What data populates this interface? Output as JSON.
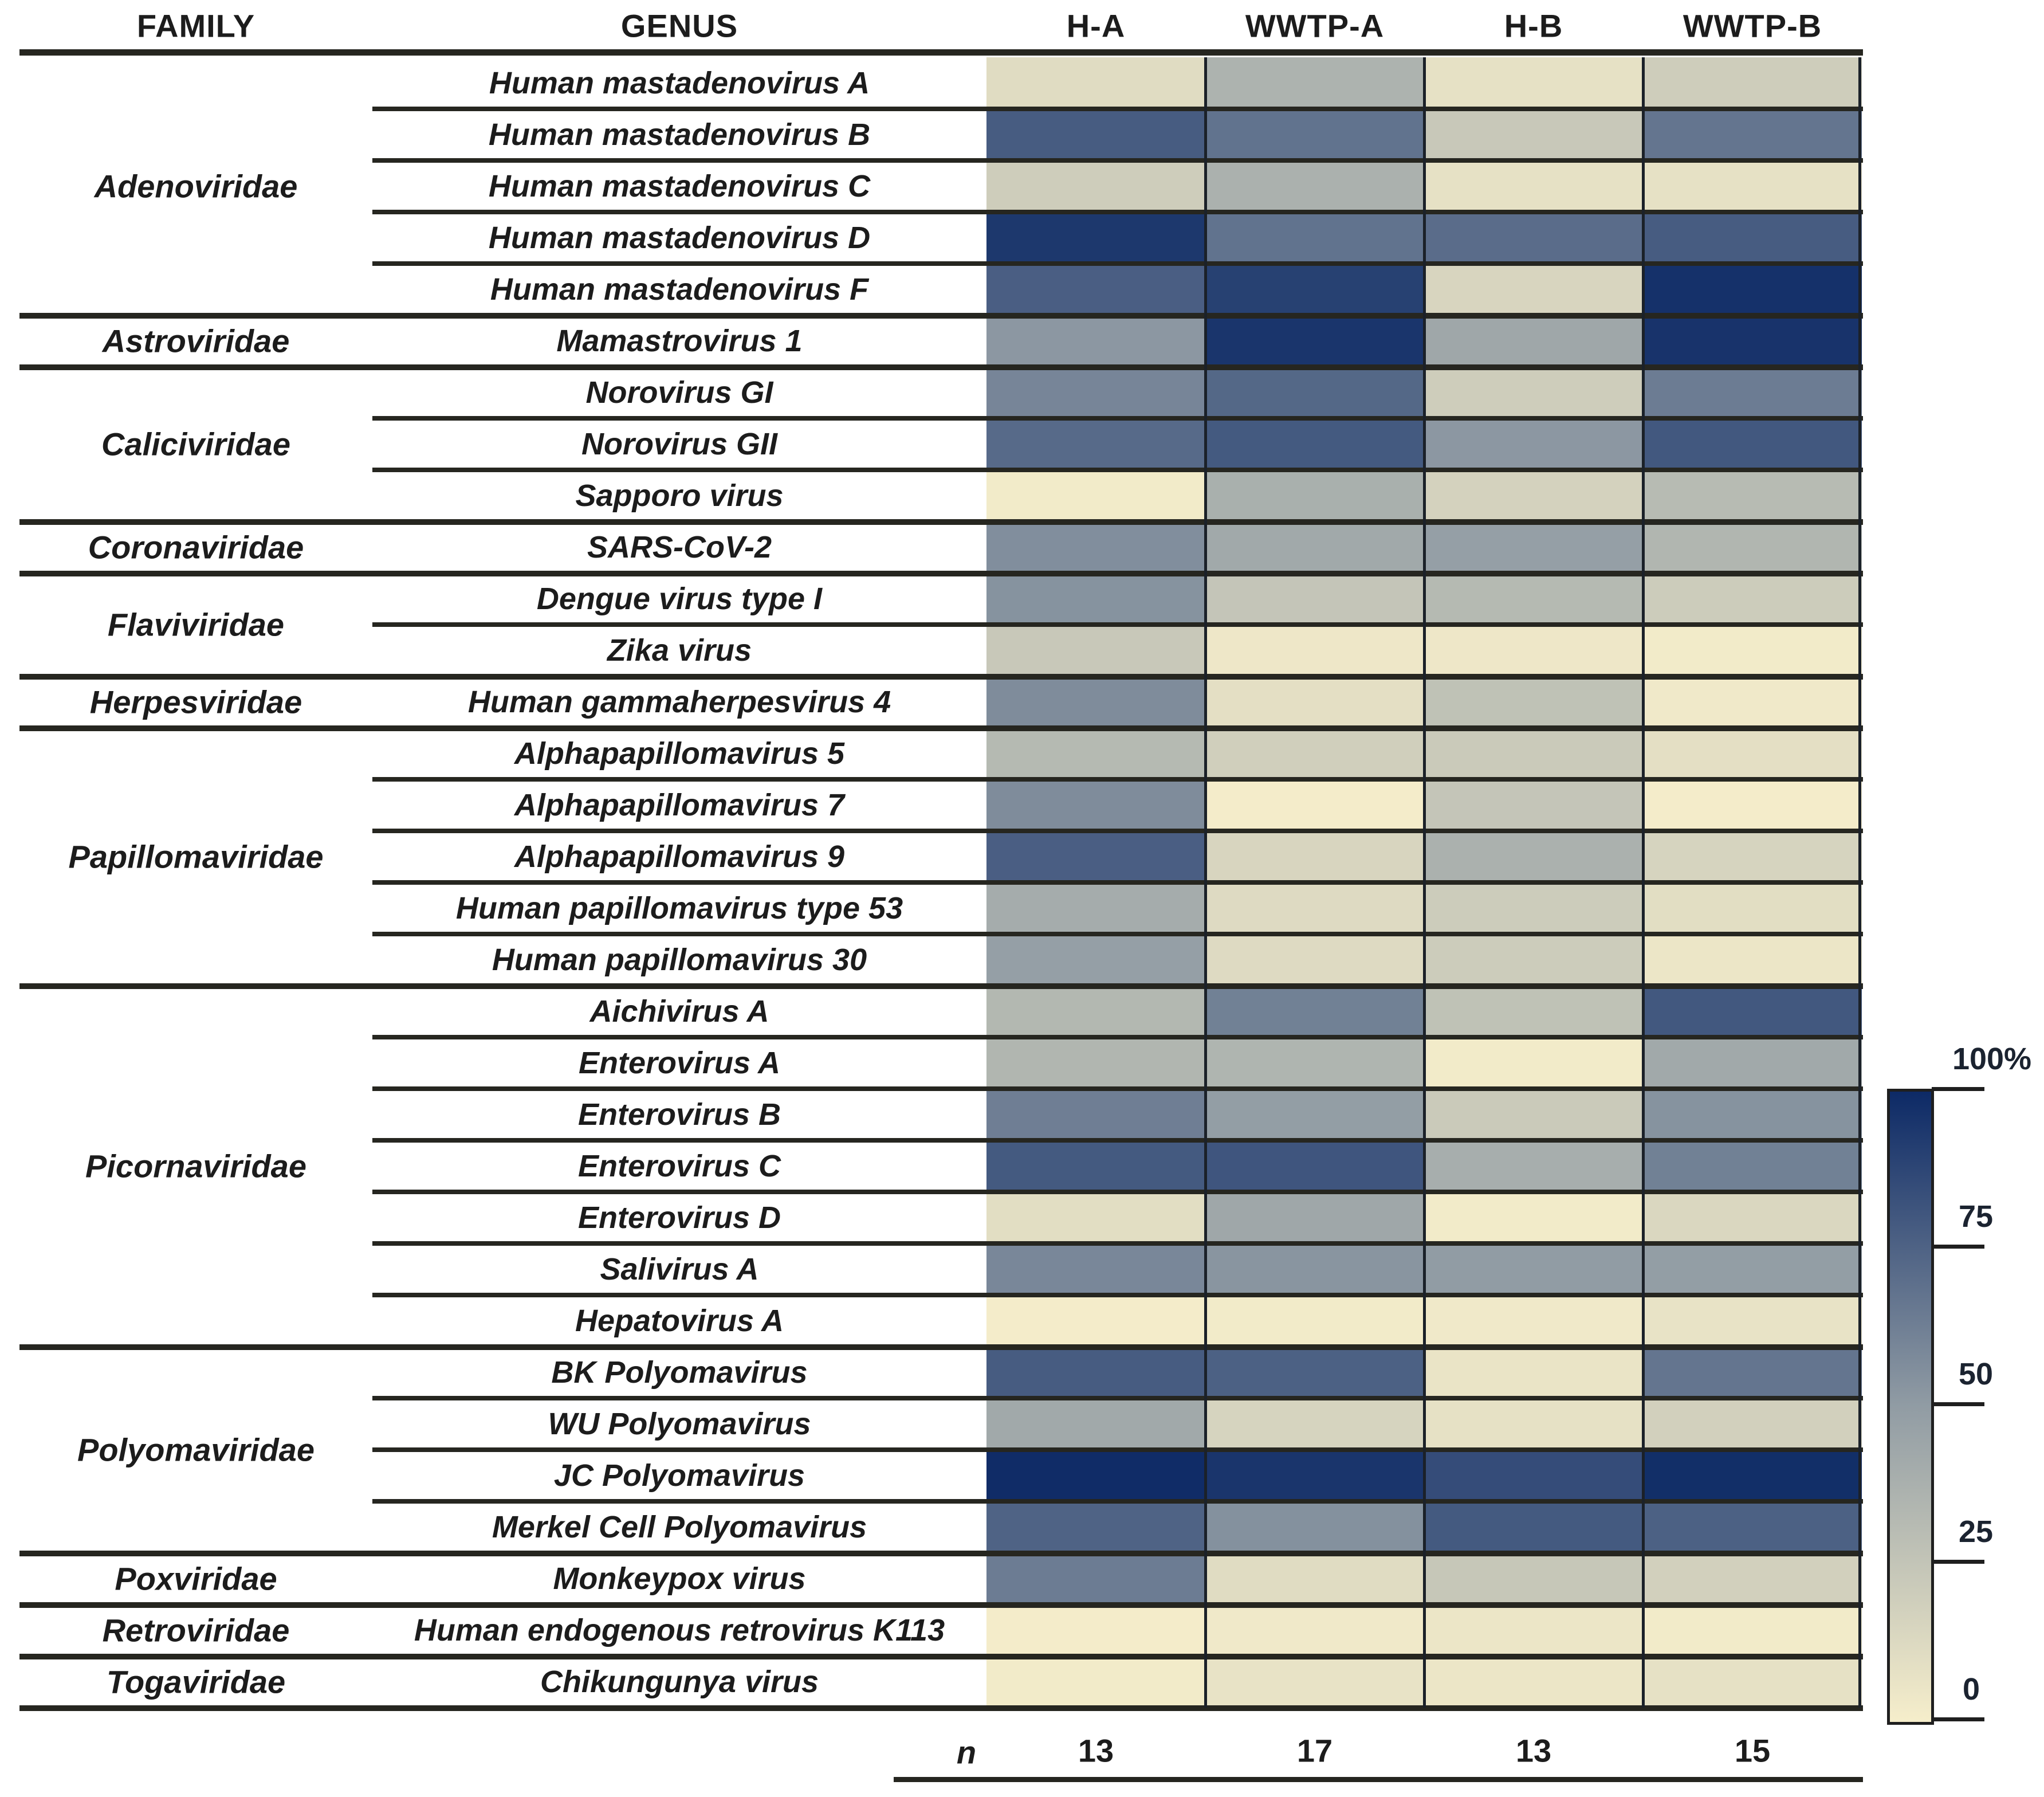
{
  "header": {
    "family": "FAMILY",
    "genus": "GENUS"
  },
  "chart_data": {
    "type": "heatmap",
    "columns": [
      "H-A",
      "WWTP-A",
      "H-B",
      "WWTP-B"
    ],
    "n_row": {
      "label": "n",
      "values": [
        13,
        17,
        13,
        15
      ]
    },
    "legend": {
      "ticks": [
        "100%",
        "75",
        "50",
        "25",
        "0"
      ],
      "min": 0,
      "max": 100,
      "position": "right"
    },
    "value_unit": "percent",
    "families": [
      {
        "family": "Adenoviridae",
        "genera": [
          {
            "name": "Human mastadenovirus A",
            "values": [
              11,
              36,
              8,
              20
            ]
          },
          {
            "name": "Human mastadenovirus B",
            "values": [
              78,
              68,
              23,
              67
            ]
          },
          {
            "name": "Human mastadenovirus C",
            "values": [
              20,
              37,
              8,
              8
            ]
          },
          {
            "name": "Human mastadenovirus D",
            "values": [
              94,
              68,
              71,
              78
            ]
          },
          {
            "name": "Human mastadenovirus F",
            "values": [
              77,
              90,
              15,
              97
            ]
          }
        ]
      },
      {
        "family": "Astroviridae",
        "genera": [
          {
            "name": "Mamastrovirus 1",
            "values": [
              52,
              95,
              43,
              96
            ]
          }
        ]
      },
      {
        "family": "Caliciviridae",
        "genera": [
          {
            "name": "Norovirus GI",
            "values": [
              60,
              73,
              20,
              64
            ]
          },
          {
            "name": "Norovirus GII",
            "values": [
              72,
              79,
              52,
              80
            ]
          },
          {
            "name": "Sapporo virus",
            "values": [
              2,
              38,
              17,
              31
            ]
          }
        ]
      },
      {
        "family": "Coronaviridae",
        "genera": [
          {
            "name": "SARS-CoV-2",
            "values": [
              56,
              42,
              48,
              34
            ]
          }
        ]
      },
      {
        "family": "Flaviviridae",
        "genera": [
          {
            "name": "Dengue virus type I",
            "values": [
              54,
              25,
              32,
              21
            ]
          },
          {
            "name": "Zika virus",
            "values": [
              23,
              4,
              4,
              2
            ]
          }
        ]
      },
      {
        "family": "Herpesviridae",
        "genera": [
          {
            "name": "Human gammaherpesvirus 4",
            "values": [
              57,
              9,
              27,
              3
            ]
          }
        ]
      },
      {
        "family": "Papillomaviridae",
        "genera": [
          {
            "name": "Alphapapillomavirus 5",
            "values": [
              32,
              19,
              22,
              9
            ]
          },
          {
            "name": "Alphapapillomavirus 7",
            "values": [
              57,
              1,
              25,
              1
            ]
          },
          {
            "name": "Alphapapillomavirus 9",
            "values": [
              77,
              15,
              37,
              16
            ]
          },
          {
            "name": "Human papillomavirus type 53",
            "values": [
              40,
              12,
              21,
              10
            ]
          },
          {
            "name": "Human papillomavirus 30",
            "values": [
              48,
              12,
              21,
              5
            ]
          }
        ]
      },
      {
        "family": "Picornaviridae",
        "genera": [
          {
            "name": "Aichivirus A",
            "values": [
              33,
              62,
              27,
              80
            ]
          },
          {
            "name": "Enterovirus A",
            "values": [
              34,
              35,
              2,
              42
            ]
          },
          {
            "name": "Enterovirus B",
            "values": [
              63,
              49,
              22,
              54
            ]
          },
          {
            "name": "Enterovirus C",
            "values": [
              79,
              81,
              39,
              62
            ]
          },
          {
            "name": "Enterovirus D",
            "values": [
              10,
              43,
              2,
              14
            ]
          },
          {
            "name": "Salivirus A",
            "values": [
              59,
              53,
              50,
              49
            ]
          },
          {
            "name": "Hepatovirus A",
            "values": [
              1,
              2,
              3,
              7
            ]
          }
        ]
      },
      {
        "family": "Polyomaviridae",
        "genera": [
          {
            "name": "BK Polyomavirus",
            "values": [
              78,
              76,
              6,
              67
            ]
          },
          {
            "name": "WU Polyomavirus",
            "values": [
              42,
              16,
              8,
              18
            ]
          },
          {
            "name": "JC Polyomavirus",
            "values": [
              99,
              95,
              85,
              98
            ]
          },
          {
            "name": "Merkel Cell Polyomavirus",
            "values": [
              75,
              55,
              79,
              76
            ]
          }
        ]
      },
      {
        "family": "Poxviridae",
        "genera": [
          {
            "name": "Monkeypox virus",
            "values": [
              64,
              11,
              24,
              18
            ]
          }
        ]
      },
      {
        "family": "Retroviridae",
        "genera": [
          {
            "name": "Human endogenous retrovirus K113",
            "values": [
              1,
              3,
              5,
              2
            ]
          }
        ]
      },
      {
        "family": "Togaviridae",
        "genera": [
          {
            "name": "Chikungunya virus",
            "values": [
              2,
              7,
              5,
              8
            ]
          }
        ]
      }
    ]
  },
  "colors": {
    "scale_0": "#f6eecb",
    "scale_50": "#919ca4",
    "scale_100": "#0d2a66",
    "line": "#262620",
    "cell_divider": "#1b2129",
    "text": "#1c1c1c"
  }
}
